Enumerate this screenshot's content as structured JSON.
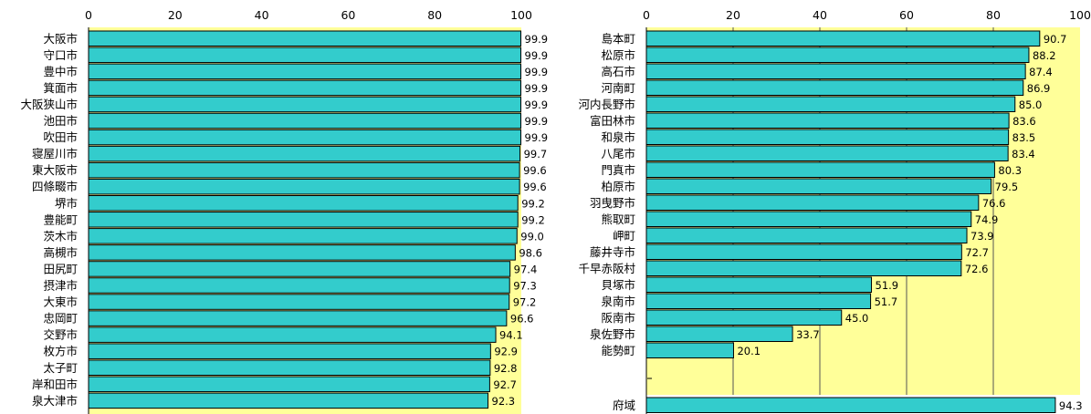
{
  "chart_data": [
    {
      "type": "bar",
      "orientation": "horizontal",
      "xlim": [
        0,
        100
      ],
      "x_ticks": [
        "0",
        "20",
        "40",
        "60",
        "80",
        "100"
      ],
      "grid": false,
      "plot_background": "#ffff99",
      "bar_color": "#33cccc",
      "categories": [
        "大阪市",
        "守口市",
        "豊中市",
        "箕面市",
        "大阪狭山市",
        "池田市",
        "吹田市",
        "寝屋川市",
        "東大阪市",
        "四條畷市",
        "堺市",
        "豊能町",
        "茨木市",
        "高槻市",
        "田尻町",
        "摂津市",
        "大東市",
        "忠岡町",
        "交野市",
        "枚方市",
        "太子町",
        "岸和田市",
        "泉大津市"
      ],
      "values": [
        99.9,
        99.9,
        99.9,
        99.9,
        99.9,
        99.9,
        99.9,
        99.7,
        99.6,
        99.6,
        99.2,
        99.2,
        99.0,
        98.6,
        97.4,
        97.3,
        97.2,
        96.6,
        94.1,
        92.9,
        92.8,
        92.7,
        92.3
      ],
      "value_labels": [
        "99.9",
        "99.9",
        "99.9",
        "99.9",
        "99.9",
        "99.9",
        "99.9",
        "99.7",
        "99.6",
        "99.6",
        "99.2",
        "99.2",
        "99.0",
        "98.6",
        "97.4",
        "97.3",
        "97.2",
        "96.6",
        "94.1",
        "92.9",
        "92.8",
        "92.7",
        "92.3"
      ]
    },
    {
      "type": "bar",
      "orientation": "horizontal",
      "xlim": [
        0,
        100
      ],
      "x_ticks": [
        "0",
        "20",
        "40",
        "60",
        "80",
        "100"
      ],
      "grid": true,
      "plot_background": "#ffff99",
      "bar_color": "#33cccc",
      "categories": [
        "島本町",
        "松原市",
        "高石市",
        "河南町",
        "河内長野市",
        "富田林市",
        "和泉市",
        "八尾市",
        "門真市",
        "柏原市",
        "羽曳野市",
        "熊取町",
        "岬町",
        "藤井寺市",
        "千早赤阪村",
        "貝塚市",
        "泉南市",
        "阪南市",
        "泉佐野市",
        "能勢町"
      ],
      "values": [
        90.7,
        88.2,
        87.4,
        86.9,
        85.0,
        83.6,
        83.5,
        83.4,
        80.3,
        79.5,
        76.6,
        74.9,
        73.9,
        72.7,
        72.6,
        51.9,
        51.7,
        45.0,
        33.7,
        20.1
      ],
      "value_labels": [
        "90.7",
        "88.2",
        "87.4",
        "86.9",
        "85.0",
        "83.6",
        "83.5",
        "83.4",
        "80.3",
        "79.5",
        "76.6",
        "74.9",
        "73.9",
        "72.7",
        "72.6",
        "51.9",
        "51.7",
        "45.0",
        "33.7",
        "20.1"
      ],
      "total": {
        "label": "府域",
        "value": 94.3,
        "value_label": "94.3"
      }
    }
  ]
}
